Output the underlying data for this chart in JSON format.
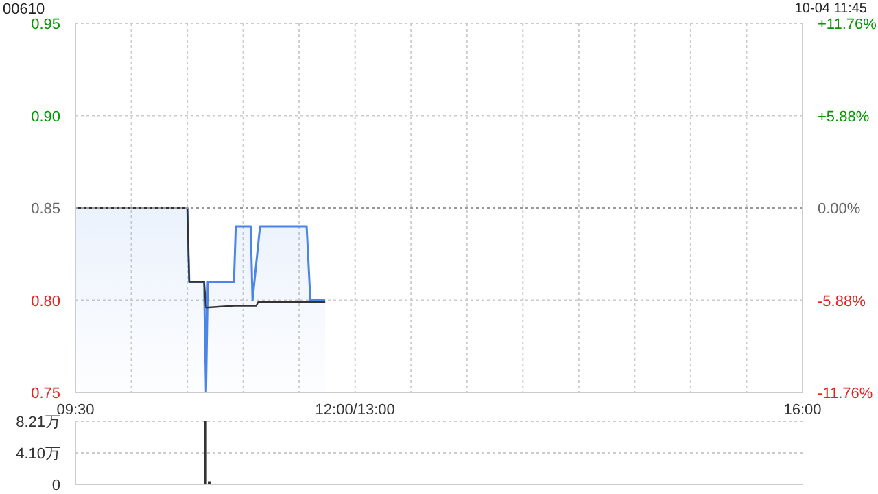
{
  "chart_data": [
    {
      "type": "line",
      "title": "00610",
      "annotations": [
        "10-04 11:45"
      ],
      "series": [
        {
          "type": "area",
          "color": "#4a86e8",
          "x": [
            9.5,
            10.5,
            10.517,
            10.65,
            10.667,
            10.683,
            10.917,
            10.933,
            11.067,
            11.083,
            11.15,
            11.567,
            11.6,
            11.733
          ],
          "values": [
            0.85,
            0.85,
            0.81,
            0.81,
            0.75,
            0.81,
            0.81,
            0.84,
            0.84,
            0.8,
            0.84,
            0.84,
            0.8,
            0.8
          ]
        },
        {
          "color": "#333333",
          "x": [
            9.5,
            10.5,
            10.517,
            10.65,
            10.667,
            10.917,
            10.933,
            11.117,
            11.133,
            11.733
          ],
          "values": [
            0.85,
            0.85,
            0.81,
            0.81,
            0.796,
            0.797,
            0.797,
            0.797,
            0.799,
            0.799
          ]
        }
      ],
      "xlim": [
        9.5,
        16
      ],
      "xticks": [
        {
          "value": 9.5,
          "label": "09:30"
        },
        {
          "value": 10,
          "label": null
        },
        {
          "value": 10.5,
          "label": null
        },
        {
          "value": 11,
          "label": null
        },
        {
          "value": 11.5,
          "label": null
        },
        {
          "value": 12,
          "label": "12:00/13:00"
        },
        {
          "value": 12.5,
          "label": null
        },
        {
          "value": 13,
          "label": null
        },
        {
          "value": 13.5,
          "label": null
        },
        {
          "value": 14,
          "label": null
        },
        {
          "value": 14.5,
          "label": null
        },
        {
          "value": 15,
          "label": null
        },
        {
          "value": 15.5,
          "label": null
        },
        {
          "value": 16,
          "label": "16:00"
        }
      ],
      "ylim": [
        0.75,
        0.95
      ],
      "yticks": [
        {
          "value": 0.75,
          "label": "0.75"
        },
        {
          "value": 0.8,
          "label": "0.80"
        },
        {
          "value": 0.85,
          "label": "0.85"
        },
        {
          "value": 0.9,
          "label": "0.90"
        },
        {
          "value": 0.95,
          "label": "0.95"
        }
      ],
      "y2lim": [
        -11.76,
        11.76
      ],
      "y2ticks": [
        {
          "value": -11.76,
          "label": "-11.76%"
        },
        {
          "value": -5.88,
          "label": "-5.88%"
        },
        {
          "value": 0,
          "label": "0.00%"
        },
        {
          "value": 5.88,
          "label": "+5.88%"
        },
        {
          "value": 11.76,
          "label": "+11.76%"
        }
      ],
      "ref_lines": [
        {
          "axis": "y",
          "value": 0.85,
          "color": "#999999",
          "line_style": "dotted"
        }
      ],
      "grid": true
    },
    {
      "type": "bar",
      "series": [
        {
          "color": "#333333",
          "x": [
            10.667,
            10.7
          ],
          "values": [
            8.21,
            0.4
          ]
        }
      ],
      "xlim": [
        9.5,
        16
      ],
      "ylim": [
        0,
        8.21
      ],
      "yticks": [
        0,
        {
          "value": 4.1,
          "label": "4.10万"
        },
        {
          "value": 8.21,
          "label": "8.21万"
        }
      ],
      "grid": "y",
      "tick_labels": "y"
    }
  ]
}
